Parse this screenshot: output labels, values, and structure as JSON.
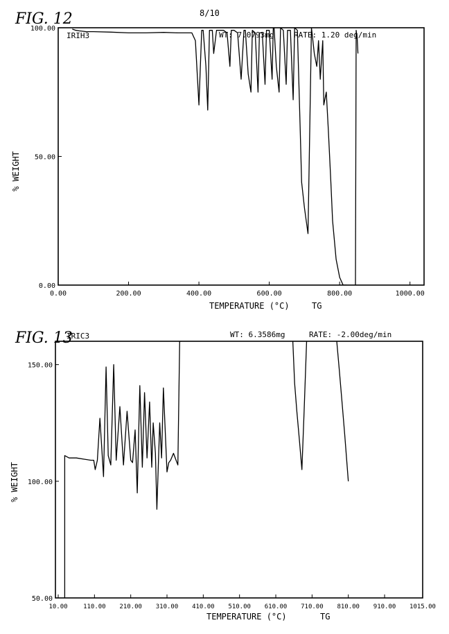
{
  "page": {
    "sheet_number": "8/10"
  },
  "chart_data": [
    {
      "type": "line",
      "fig_label": "FIG. 12",
      "sample": "IRIH3",
      "weight": "WT: 7.0793mg",
      "rate": "RATE: 1.20 deg/min",
      "xlabel": "TEMPERATURE (°C)",
      "xlabel_suffix": "TG",
      "ylabel": "% WEIGHT",
      "xlim": [
        0,
        1040
      ],
      "ylim": [
        0,
        100
      ],
      "xticks": [
        0,
        200,
        400,
        600,
        800,
        1000
      ],
      "xtick_labels": [
        "0.00",
        "200.00",
        "400.00",
        "600.00",
        "800.00",
        "1000.00"
      ],
      "yticks": [
        0,
        50,
        100
      ],
      "ytick_labels": [
        "0.00",
        "50.00",
        "100.00"
      ],
      "grid": false,
      "series": [
        {
          "x": [
            40,
            50,
            60,
            80,
            100,
            150,
            200,
            250,
            300,
            340,
            380,
            390,
            400,
            408,
            412,
            420,
            425,
            430,
            438,
            442,
            450,
            470,
            480,
            488,
            492,
            500,
            510,
            520,
            528,
            532,
            540,
            548,
            552,
            560,
            568,
            572,
            580,
            588,
            592,
            600,
            608,
            612,
            620,
            628,
            632,
            640,
            648,
            652,
            660,
            668,
            672,
            680,
            688,
            692,
            700,
            710,
            720,
            728,
            735,
            740,
            745,
            752,
            755,
            762,
            768,
            775,
            780,
            790,
            800,
            810,
            820
          ],
          "y": [
            99.5,
            99,
            98.8,
            98.5,
            98.5,
            98.3,
            98,
            98,
            98.2,
            98,
            98,
            95,
            70,
            99,
            99,
            85,
            68,
            99,
            99,
            90,
            99,
            99,
            98,
            85,
            99,
            99,
            98,
            80,
            99,
            99,
            82,
            75,
            99,
            98,
            75,
            98,
            98,
            78,
            99,
            99,
            80,
            104,
            85,
            75,
            100,
            99,
            78,
            99,
            99,
            72,
            100,
            99,
            60,
            40,
            30,
            20,
            100,
            90,
            85,
            95,
            80,
            95,
            70,
            75,
            60,
            40,
            25,
            10,
            3,
            0,
            0
          ]
        },
        {
          "x": [
            845,
            847,
            850,
            852
          ],
          "y": [
            0,
            99,
            96,
            90
          ]
        }
      ]
    },
    {
      "type": "line",
      "fig_label": "FIG. 13",
      "sample": "IRIC3",
      "weight": "WT: 6.3586mg",
      "rate": "RATE: -2.00deg/min",
      "xlabel": "TEMPERATURE (°C)",
      "xlabel_suffix": "TG",
      "ylabel": "% WEIGHT",
      "xlim": [
        10,
        1015
      ],
      "ylim": [
        50,
        160
      ],
      "xticks": [
        10,
        110,
        210,
        310,
        410,
        510,
        610,
        710,
        810,
        910,
        1015
      ],
      "xtick_labels": [
        "10.00",
        "110.00",
        "210.00",
        "310.00",
        "410.00",
        "510.00",
        "610.00",
        "710.00",
        "810.00",
        "910.00",
        "1015.00"
      ],
      "yticks": [
        50,
        100,
        150
      ],
      "ytick_labels": [
        "50.00",
        "100.00",
        "150.00"
      ],
      "grid": false,
      "series": [
        {
          "x": [
            28,
            28,
            40,
            60,
            80,
            100,
            108,
            112,
            118,
            125,
            135,
            142,
            148,
            155,
            163,
            170,
            180,
            190,
            200,
            210,
            215,
            222,
            228,
            235,
            242,
            248,
            255,
            262,
            268,
            272,
            278,
            282,
            290,
            295,
            300,
            310,
            315,
            320,
            328,
            335,
            340,
            345,
            350
          ],
          "y": [
            50,
            111,
            110,
            110,
            109.5,
            109,
            109,
            105,
            109,
            127,
            102,
            149,
            111,
            107,
            150,
            109,
            132,
            107,
            130,
            109,
            108,
            122,
            95,
            141,
            106,
            138,
            110,
            134,
            106,
            125,
            112,
            88,
            125,
            110,
            140,
            104,
            108,
            109,
            112,
            109,
            107,
            160,
            160
          ]
        },
        {
          "x": [
            657,
            662,
            668,
            675,
            682,
            688,
            695
          ],
          "y": [
            160,
            142,
            130,
            118,
            105,
            130,
            160
          ]
        },
        {
          "x": [
            778,
            785,
            792,
            800,
            805,
            810
          ],
          "y": [
            160,
            148,
            135,
            120,
            110,
            100
          ]
        }
      ]
    }
  ]
}
